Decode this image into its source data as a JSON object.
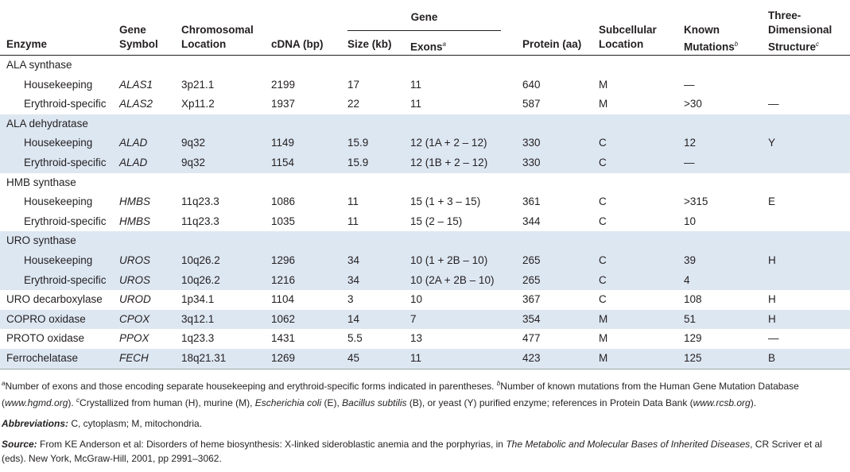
{
  "header": {
    "group_label": "Gene",
    "columns": [
      {
        "lines": [
          "Enzyme"
        ]
      },
      {
        "lines": [
          "Gene",
          "Symbol"
        ]
      },
      {
        "lines": [
          "Chromosomal",
          "Location"
        ]
      },
      {
        "lines": [
          "cDNA (bp)"
        ]
      },
      {
        "lines": [
          "Size (kb)"
        ]
      },
      {
        "lines": [
          "Exons"
        ],
        "note": "a"
      },
      {
        "lines": [
          "Protein (aa)"
        ]
      },
      {
        "lines": [
          "Subcellular",
          "Location"
        ]
      },
      {
        "lines": [
          "Known",
          "Mutations"
        ],
        "note": "b"
      },
      {
        "lines": [
          "Three-",
          "Dimensional",
          "Structure"
        ],
        "note": "c"
      }
    ]
  },
  "groups": [
    {
      "name": "ALA synthase",
      "forms": [
        [
          "Housekeeping",
          "ALAS1",
          "3p21.1",
          2199,
          17,
          "11",
          640,
          "M",
          "—",
          null
        ],
        [
          "Erythroid-specific",
          "ALAS2",
          "Xp11.2",
          1937,
          22,
          "11",
          587,
          "M",
          ">30",
          "—"
        ]
      ]
    },
    {
      "name": "ALA dehydratase",
      "forms": [
        [
          "Housekeeping",
          "ALAD",
          "9q32",
          1149,
          15.9,
          "12 (1A + 2 – 12)",
          330,
          "C",
          "12",
          "Y"
        ],
        [
          "Erythroid-specific",
          "ALAD",
          "9q32",
          1154,
          15.9,
          "12 (1B + 2 – 12)",
          330,
          "C",
          "—",
          null
        ]
      ]
    },
    {
      "name": "HMB synthase",
      "forms": [
        [
          "Housekeeping",
          "HMBS",
          "11q23.3",
          1086,
          11,
          "15 (1 + 3 – 15)",
          361,
          "C",
          ">315",
          "E"
        ],
        [
          "Erythroid-specific",
          "HMBS",
          "11q23.3",
          1035,
          11,
          "15 (2 – 15)",
          344,
          "C",
          "10",
          null
        ]
      ]
    },
    {
      "name": "URO synthase",
      "forms": [
        [
          "Housekeeping",
          "UROS",
          "10q26.2",
          1296,
          34,
          "10 (1 + 2B – 10)",
          265,
          "C",
          "39",
          "H"
        ],
        [
          "Erythroid-specific",
          "UROS",
          "10q26.2",
          1216,
          34,
          "10 (2A + 2B – 10)",
          265,
          "C",
          "4",
          null
        ]
      ]
    },
    {
      "cells": [
        "URO decarboxylase",
        "UROD",
        "1p34.1",
        1104,
        3,
        "10",
        367,
        "C",
        "108",
        "H"
      ]
    },
    {
      "cells": [
        "COPRO oxidase",
        "CPOX",
        "3q12.1",
        1062,
        14,
        "7",
        354,
        "M",
        "51",
        "H"
      ]
    },
    {
      "cells": [
        "PROTO oxidase",
        "PPOX",
        "1q23.3",
        1431,
        5.5,
        "13",
        477,
        "M",
        "129",
        "—"
      ]
    },
    {
      "cells": [
        "Ferrochelatase",
        "FECH",
        "18q21.31",
        1269,
        45,
        "11",
        423,
        "M",
        "125",
        "B"
      ]
    }
  ],
  "footnotes": [
    "a",
    "Number of exons and those encoding separate housekeeping and erythroid-specific forms indicated in parentheses. ",
    "b",
    "Number of known mutations from the Human Gene Mutation Database (",
    "www.hgmd.org",
    "). ",
    "c",
    "Crystallized from human (H), murine (M), ",
    "Escherichia coli",
    " (E), ",
    "Bacillus subtilis",
    " (B), or yeast (Y) purified enzyme; references in Protein Data Bank (",
    "www.rcsb.org",
    ")."
  ],
  "abbreviations": {
    "label": "Abbreviations:",
    "text": " C, cytoplasm; M, mitochondria."
  },
  "source": {
    "label": "Source:",
    "parts": [
      " From KE Anderson et al: Disorders of heme biosynthesis: X-linked sideroblastic anemia and the porphyrias, in ",
      "The Metabolic and Molecular Bases of Inherited Diseases",
      ", CR Scriver et al (eds). New York, McGraw-Hill, 2001, pp 2991–3062."
    ]
  }
}
